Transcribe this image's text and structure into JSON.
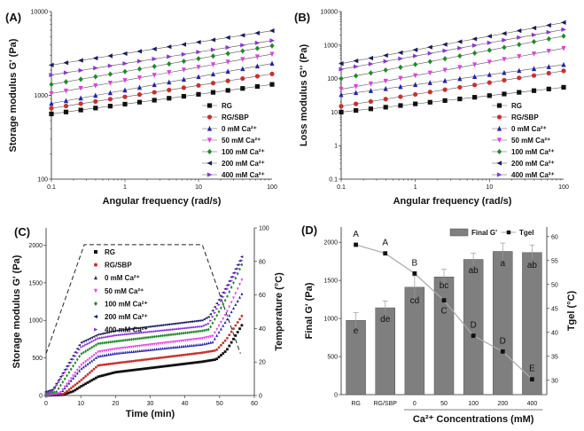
{
  "colors": {
    "RG": "#111111",
    "RG/SBP": "#c8322d",
    "0": "#2323a8",
    "50": "#e040e0",
    "100": "#1e8a2a",
    "200": "#1b1b5e",
    "400": "#8a35d8",
    "bar": "#7f7f7f",
    "tgel": "#aaaaaa"
  },
  "chart_data": [
    {
      "panel": "(A)",
      "type": "line",
      "xscale": "log",
      "yscale": "log",
      "xlabel": "Angular frequency (rad/s)",
      "ylabel": "Storage modulus G' (Pa)",
      "xlim": [
        0.1,
        100
      ],
      "ylim": [
        100,
        10000
      ],
      "xticks": [
        "0.1",
        "1",
        "10",
        "100"
      ],
      "yticks": [
        "100",
        "1000",
        "10000"
      ],
      "legend": "bottom-right",
      "x": [
        0.1,
        0.158,
        0.251,
        0.398,
        0.631,
        1,
        1.58,
        2.51,
        3.98,
        6.31,
        10,
        15.8,
        25.1,
        39.8,
        63.1,
        100
      ],
      "series": [
        {
          "name": "RG",
          "marker": "square",
          "values": [
            600,
            633,
            668,
            705,
            744,
            785,
            829,
            875,
            923,
            974,
            1028,
            1085,
            1145,
            1209,
            1276,
            1350
          ]
        },
        {
          "name": "RG/SBP",
          "marker": "circle",
          "values": [
            700,
            746,
            794,
            845,
            900,
            959,
            1021,
            1087,
            1158,
            1233,
            1313,
            1399,
            1490,
            1587,
            1690,
            1800
          ]
        },
        {
          "name": "0 mM Ca²⁺",
          "marker": "triangle-up",
          "values": [
            800,
            861,
            926,
            997,
            1073,
            1154,
            1242,
            1337,
            1438,
            1548,
            1665,
            1792,
            1929,
            2075,
            2233,
            2400
          ]
        },
        {
          "name": "50 mM Ca²⁺",
          "marker": "triangle-down",
          "values": [
            1050,
            1129,
            1213,
            1304,
            1402,
            1507,
            1620,
            1741,
            1872,
            2012,
            2163,
            2325,
            2499,
            2686,
            2888,
            3100
          ]
        },
        {
          "name": "100 mM Ca²⁺",
          "marker": "diamond",
          "values": [
            1350,
            1449,
            1555,
            1669,
            1791,
            1923,
            2064,
            2215,
            2377,
            2551,
            2738,
            2939,
            3154,
            3385,
            3634,
            3900
          ]
        },
        {
          "name": "200 mM Ca²⁺",
          "marker": "triangle-left",
          "values": [
            2300,
            2449,
            2608,
            2777,
            2957,
            3149,
            3353,
            3570,
            3801,
            4048,
            4310,
            4590,
            4887,
            5204,
            5541,
            5900
          ]
        },
        {
          "name": "400 mM Ca²⁺",
          "marker": "triangle-right",
          "values": [
            1750,
            1864,
            1985,
            2114,
            2251,
            2398,
            2553,
            2719,
            2896,
            3084,
            3285,
            3498,
            3726,
            3968,
            4226,
            4500
          ]
        }
      ]
    },
    {
      "panel": "(B)",
      "type": "line",
      "xscale": "log",
      "yscale": "log",
      "xlabel": "Angular frequency (rad/s)",
      "ylabel": "Loss modulus G'' (Pa)",
      "xlim": [
        0.1,
        100
      ],
      "ylim": [
        0.1,
        10000
      ],
      "xticks": [
        "0.1",
        "1",
        "10",
        "100"
      ],
      "yticks": [
        "0.1",
        "1",
        "10",
        "100",
        "1000",
        "10000"
      ],
      "legend": "bottom-right",
      "x": [
        0.1,
        0.158,
        0.251,
        0.398,
        0.631,
        1,
        1.58,
        2.51,
        3.98,
        6.31,
        10,
        15.8,
        25.1,
        39.8,
        63.1,
        100
      ],
      "series": [
        {
          "name": "RG",
          "marker": "square",
          "values": [
            10,
            11.2,
            12.5,
            14,
            15.7,
            17.6,
            19.7,
            22.1,
            24.7,
            27.7,
            31,
            34.7,
            38.9,
            43.6,
            48.8,
            55
          ]
        },
        {
          "name": "RG/SBP",
          "marker": "circle",
          "values": [
            15,
            17.6,
            20.7,
            24.4,
            28.7,
            33.7,
            39.7,
            46.7,
            54.9,
            64.5,
            75.9,
            89.3,
            105,
            123,
            145,
            170
          ]
        },
        {
          "name": "0 mM Ca²⁺",
          "marker": "triangle-up",
          "values": [
            33,
            37.9,
            43.5,
            49.9,
            57.2,
            65.6,
            75.3,
            86.4,
            99.2,
            114,
            131,
            150,
            172,
            197,
            226,
            260
          ]
        },
        {
          "name": "50 mM Ca²⁺",
          "marker": "triangle-down",
          "values": [
            48,
            57.9,
            69.8,
            84.2,
            102,
            123,
            148,
            178,
            215,
            259,
            312,
            377,
            454,
            548,
            661,
            800
          ]
        },
        {
          "name": "100 mM Ca²⁺",
          "marker": "diamond",
          "values": [
            100,
            121,
            147,
            179,
            217,
            264,
            321,
            390,
            474,
            576,
            700,
            851,
            1034,
            1256,
            1526,
            1850
          ]
        },
        {
          "name": "200 mM Ca²⁺",
          "marker": "triangle-left",
          "values": [
            280,
            338,
            408,
            492,
            594,
            717,
            865,
            1044,
            1260,
            1521,
            1836,
            2216,
            2674,
            3228,
            3896,
            4700
          ]
        },
        {
          "name": "400 mM Ca²⁺",
          "marker": "triangle-right",
          "values": [
            190,
            228,
            273,
            328,
            393,
            471,
            565,
            677,
            812,
            974,
            1168,
            1400,
            1679,
            2013,
            2414,
            2900
          ]
        }
      ]
    },
    {
      "panel": "(C)",
      "type": "scatter",
      "xlabel": "Time (min)",
      "ylabel": "Storage modulus G' (Pa)",
      "y2label": "Temperature (°C)",
      "xlim": [
        0,
        60
      ],
      "ylim": [
        0,
        2230
      ],
      "y2lim": [
        0,
        100
      ],
      "xticks": [
        "0",
        "10",
        "20",
        "30",
        "40",
        "50",
        "60"
      ],
      "yticks": [
        "0",
        "500",
        "1000",
        "1500",
        "2000"
      ],
      "y2ticks": [
        "0",
        "20",
        "40",
        "60",
        "80",
        "100"
      ],
      "legend": "top-left",
      "series": [
        {
          "name": "RG",
          "marker": "square",
          "points": [
            [
              0,
              0
            ],
            [
              5,
              10
            ],
            [
              8,
              60
            ],
            [
              10,
              120
            ],
            [
              15,
              250
            ],
            [
              20,
              310
            ],
            [
              45,
              450
            ],
            [
              49,
              480
            ],
            [
              52,
              600
            ],
            [
              57,
              980
            ]
          ]
        },
        {
          "name": "RG/SBP",
          "marker": "circle",
          "points": [
            [
              0,
              0
            ],
            [
              5,
              20
            ],
            [
              10,
              200
            ],
            [
              15,
              400
            ],
            [
              20,
              430
            ],
            [
              45,
              570
            ],
            [
              49,
              600
            ],
            [
              52,
              750
            ],
            [
              57,
              1100
            ]
          ]
        },
        {
          "name": "0 mM Ca²⁺",
          "marker": "triangle-up",
          "points": [
            [
              0,
              0
            ],
            [
              4,
              20
            ],
            [
              10,
              350
            ],
            [
              15,
              520
            ],
            [
              20,
              560
            ],
            [
              45,
              680
            ],
            [
              48,
              710
            ],
            [
              52,
              1000
            ],
            [
              57,
              1400
            ]
          ]
        },
        {
          "name": "50 mM Ca²⁺",
          "marker": "triangle-down",
          "points": [
            [
              0,
              0
            ],
            [
              4,
              30
            ],
            [
              10,
              400
            ],
            [
              15,
              580
            ],
            [
              20,
              620
            ],
            [
              45,
              760
            ],
            [
              48,
              790
            ],
            [
              52,
              1100
            ],
            [
              57,
              1600
            ]
          ]
        },
        {
          "name": "100 mM Ca²⁺",
          "marker": "diamond",
          "points": [
            [
              0,
              20
            ],
            [
              3,
              50
            ],
            [
              10,
              550
            ],
            [
              15,
              690
            ],
            [
              20,
              720
            ],
            [
              45,
              860
            ],
            [
              47,
              880
            ],
            [
              52,
              1300
            ],
            [
              57,
              1800
            ]
          ]
        },
        {
          "name": "200 mM Ca²⁺",
          "marker": "triangle-left",
          "points": [
            [
              0,
              50
            ],
            [
              2,
              80
            ],
            [
              10,
              700
            ],
            [
              15,
              810
            ],
            [
              20,
              860
            ],
            [
              45,
              1000
            ],
            [
              47,
              1050
            ],
            [
              52,
              1450
            ],
            [
              57,
              1900
            ]
          ]
        },
        {
          "name": "400 mM Ca²⁺",
          "marker": "triangle-right",
          "points": [
            [
              0,
              30
            ],
            [
              2,
              60
            ],
            [
              10,
              640
            ],
            [
              15,
              760
            ],
            [
              20,
              800
            ],
            [
              45,
              920
            ],
            [
              47,
              960
            ],
            [
              52,
              1400
            ],
            [
              57,
              1850
            ]
          ]
        }
      ],
      "temperature": [
        [
          0,
          25
        ],
        [
          11,
          90
        ],
        [
          45,
          90
        ],
        [
          56,
          25
        ]
      ]
    },
    {
      "panel": "(D)",
      "type": "bar",
      "xlabel": "Ca²⁺ Concentrations (mM)",
      "ylabel": "Final G' (Pa)",
      "y2label": "Tgel (°C)",
      "categories": [
        "RG",
        "RG/SBP",
        "0",
        "50",
        "100",
        "200",
        "400"
      ],
      "ylim": [
        0,
        2200
      ],
      "y2lim": [
        27,
        62
      ],
      "yticks": [
        "0",
        "500",
        "1000",
        "1500",
        "2000"
      ],
      "y2ticks": [
        "30",
        "35",
        "40",
        "45",
        "50",
        "55",
        "60"
      ],
      "legend": "top-right",
      "legend_labels": [
        "Final G'",
        "Tgel"
      ],
      "series": [
        {
          "name": "Final G'",
          "type": "bar",
          "values": [
            975,
            1140,
            1410,
            1545,
            1775,
            1880,
            1865
          ],
          "errors": [
            100,
            90,
            150,
            100,
            80,
            110,
            100
          ],
          "letters": [
            "e",
            "de",
            "cd",
            "bc",
            "ab",
            "a",
            "ab"
          ]
        },
        {
          "name": "Tgel",
          "type": "line",
          "values": [
            58.3,
            56.5,
            52.3,
            46.7,
            39.3,
            36.0,
            30.2
          ],
          "errors": [
            0.6,
            0.7,
            1.5,
            1.2,
            0.8,
            0.4,
            0.4
          ],
          "letters": [
            "A",
            "A",
            "B",
            "C",
            "D",
            "D",
            "E"
          ]
        }
      ]
    }
  ]
}
